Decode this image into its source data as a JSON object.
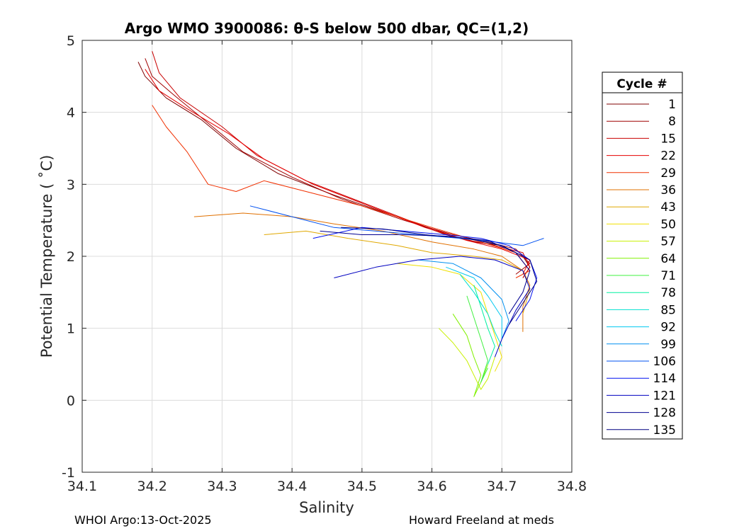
{
  "chart_data": {
    "type": "line",
    "title": "Argo WMO 3900086: θ-S below 500 dbar,  QC=(1,2)",
    "xlabel": "Salinity",
    "ylabel": "Potential Temperature ( ˚C)",
    "xlim": [
      34.1,
      34.8
    ],
    "ylim": [
      -1,
      5
    ],
    "xticks": [
      34.1,
      34.2,
      34.3,
      34.4,
      34.5,
      34.6,
      34.7,
      34.8
    ],
    "xtick_labels": [
      "34.1",
      "34.2",
      "34.3",
      "34.4",
      "34.5",
      "34.6",
      "34.7",
      "34.8"
    ],
    "yticks": [
      -1,
      0,
      1,
      2,
      3,
      4,
      5
    ],
    "ytick_labels": [
      "-1",
      "0",
      "1",
      "2",
      "3",
      "4",
      "5"
    ],
    "grid": true,
    "legend_title": "Cycle #",
    "legend_position": "right",
    "legend": [
      {
        "label": "1",
        "color": "#800000"
      },
      {
        "label": "8",
        "color": "#a00000"
      },
      {
        "label": "15",
        "color": "#c80000"
      },
      {
        "label": "22",
        "color": "#e60000"
      },
      {
        "label": "29",
        "color": "#f03000"
      },
      {
        "label": "36",
        "color": "#e07000"
      },
      {
        "label": "43",
        "color": "#e0a800"
      },
      {
        "label": "50",
        "color": "#f0e000"
      },
      {
        "label": "57",
        "color": "#c8f000"
      },
      {
        "label": "64",
        "color": "#80f000"
      },
      {
        "label": "71",
        "color": "#40f040"
      },
      {
        "label": "78",
        "color": "#00f0a0"
      },
      {
        "label": "85",
        "color": "#00e0d0"
      },
      {
        "label": "92",
        "color": "#00c8f0"
      },
      {
        "label": "99",
        "color": "#0090f0"
      },
      {
        "label": "106",
        "color": "#0050f0"
      },
      {
        "label": "114",
        "color": "#0010f0"
      },
      {
        "label": "121",
        "color": "#0000c0"
      },
      {
        "label": "128",
        "color": "#000090"
      },
      {
        "label": "135",
        "color": "#000080"
      }
    ],
    "series": [
      {
        "name": "1",
        "color": "#800000",
        "points": [
          [
            34.18,
            4.7
          ],
          [
            34.19,
            4.5
          ],
          [
            34.22,
            4.2
          ],
          [
            34.27,
            3.9
          ],
          [
            34.32,
            3.5
          ],
          [
            34.38,
            3.15
          ],
          [
            34.46,
            2.85
          ],
          [
            34.55,
            2.55
          ],
          [
            34.62,
            2.3
          ],
          [
            34.66,
            2.2
          ],
          [
            34.7,
            2.15
          ],
          [
            34.73,
            2.0
          ],
          [
            34.74,
            1.85
          ],
          [
            34.73,
            1.7
          ]
        ]
      },
      {
        "name": "8",
        "color": "#a00000",
        "points": [
          [
            34.19,
            4.75
          ],
          [
            34.2,
            4.5
          ],
          [
            34.23,
            4.25
          ],
          [
            34.28,
            3.85
          ],
          [
            34.33,
            3.45
          ],
          [
            34.4,
            3.1
          ],
          [
            34.47,
            2.8
          ],
          [
            34.56,
            2.5
          ],
          [
            34.63,
            2.3
          ],
          [
            34.68,
            2.2
          ],
          [
            34.72,
            2.1
          ],
          [
            34.74,
            1.9
          ],
          [
            34.72,
            1.75
          ]
        ]
      },
      {
        "name": "15",
        "color": "#c80000",
        "points": [
          [
            34.2,
            4.85
          ],
          [
            34.21,
            4.55
          ],
          [
            34.24,
            4.2
          ],
          [
            34.3,
            3.8
          ],
          [
            34.35,
            3.4
          ],
          [
            34.42,
            3.05
          ],
          [
            34.5,
            2.75
          ],
          [
            34.58,
            2.45
          ],
          [
            34.64,
            2.25
          ],
          [
            34.69,
            2.15
          ],
          [
            34.73,
            2.05
          ],
          [
            34.74,
            1.85
          ],
          [
            34.73,
            1.7
          ]
        ]
      },
      {
        "name": "22",
        "color": "#e60000",
        "points": [
          [
            34.19,
            4.6
          ],
          [
            34.21,
            4.3
          ],
          [
            34.25,
            4.05
          ],
          [
            34.31,
            3.7
          ],
          [
            34.36,
            3.35
          ],
          [
            34.43,
            3.0
          ],
          [
            34.51,
            2.7
          ],
          [
            34.59,
            2.4
          ],
          [
            34.65,
            2.22
          ],
          [
            34.7,
            2.1
          ],
          [
            34.74,
            1.95
          ],
          [
            34.73,
            1.75
          ]
        ]
      },
      {
        "name": "29",
        "color": "#f03000",
        "points": [
          [
            34.2,
            4.1
          ],
          [
            34.22,
            3.8
          ],
          [
            34.25,
            3.45
          ],
          [
            34.28,
            3.0
          ],
          [
            34.32,
            2.9
          ],
          [
            34.36,
            3.05
          ],
          [
            34.42,
            2.9
          ],
          [
            34.5,
            2.7
          ],
          [
            34.6,
            2.4
          ],
          [
            34.67,
            2.2
          ],
          [
            34.72,
            2.05
          ],
          [
            34.74,
            1.8
          ],
          [
            34.72,
            1.7
          ]
        ]
      },
      {
        "name": "36",
        "color": "#e07000",
        "points": [
          [
            34.26,
            2.55
          ],
          [
            34.33,
            2.6
          ],
          [
            34.4,
            2.55
          ],
          [
            34.46,
            2.45
          ],
          [
            34.53,
            2.35
          ],
          [
            34.6,
            2.2
          ],
          [
            34.66,
            2.1
          ],
          [
            34.7,
            2.0
          ],
          [
            34.73,
            1.8
          ],
          [
            34.74,
            1.6
          ],
          [
            34.73,
            1.3
          ],
          [
            34.73,
            0.95
          ]
        ]
      },
      {
        "name": "43",
        "color": "#e0a800",
        "points": [
          [
            34.36,
            2.3
          ],
          [
            34.42,
            2.35
          ],
          [
            34.48,
            2.25
          ],
          [
            34.55,
            2.15
          ],
          [
            34.6,
            2.05
          ],
          [
            34.66,
            2.0
          ],
          [
            34.7,
            1.95
          ],
          [
            34.73,
            1.8
          ],
          [
            34.74,
            1.55
          ],
          [
            34.73,
            1.2
          ]
        ]
      },
      {
        "name": "50",
        "color": "#f0e000",
        "points": [
          [
            34.55,
            1.9
          ],
          [
            34.6,
            1.85
          ],
          [
            34.64,
            1.75
          ],
          [
            34.67,
            1.5
          ],
          [
            34.68,
            1.2
          ],
          [
            34.69,
            0.9
          ],
          [
            34.7,
            0.6
          ],
          [
            34.69,
            0.4
          ]
        ]
      },
      {
        "name": "57",
        "color": "#c8f000",
        "points": [
          [
            34.61,
            1.0
          ],
          [
            34.63,
            0.8
          ],
          [
            34.65,
            0.55
          ],
          [
            34.66,
            0.35
          ],
          [
            34.67,
            0.15
          ],
          [
            34.68,
            0.3
          ],
          [
            34.69,
            0.6
          ]
        ]
      },
      {
        "name": "64",
        "color": "#80f000",
        "points": [
          [
            34.63,
            1.2
          ],
          [
            34.65,
            0.9
          ],
          [
            34.66,
            0.6
          ],
          [
            34.67,
            0.35
          ],
          [
            34.66,
            0.05
          ],
          [
            34.67,
            0.25
          ],
          [
            34.68,
            0.5
          ]
        ]
      },
      {
        "name": "71",
        "color": "#40f040",
        "points": [
          [
            34.65,
            1.45
          ],
          [
            34.66,
            1.15
          ],
          [
            34.67,
            0.85
          ],
          [
            34.68,
            0.55
          ],
          [
            34.67,
            0.25
          ],
          [
            34.68,
            0.45
          ]
        ]
      },
      {
        "name": "78",
        "color": "#00f0a0",
        "points": [
          [
            34.66,
            1.6
          ],
          [
            34.67,
            1.3
          ],
          [
            34.68,
            1.0
          ],
          [
            34.69,
            0.75
          ],
          [
            34.68,
            0.5
          ]
        ]
      },
      {
        "name": "85",
        "color": "#00e0d0",
        "points": [
          [
            34.64,
            1.75
          ],
          [
            34.66,
            1.5
          ],
          [
            34.68,
            1.2
          ],
          [
            34.69,
            0.95
          ],
          [
            34.7,
            0.75
          ]
        ]
      },
      {
        "name": "92",
        "color": "#00c8f0",
        "points": [
          [
            34.62,
            1.85
          ],
          [
            34.66,
            1.7
          ],
          [
            34.68,
            1.45
          ],
          [
            34.7,
            1.15
          ],
          [
            34.7,
            0.85
          ]
        ]
      },
      {
        "name": "99",
        "color": "#0090f0",
        "points": [
          [
            34.58,
            1.95
          ],
          [
            34.63,
            1.9
          ],
          [
            34.67,
            1.7
          ],
          [
            34.7,
            1.4
          ],
          [
            34.71,
            1.1
          ],
          [
            34.7,
            0.85
          ]
        ]
      },
      {
        "name": "106",
        "color": "#0050f0",
        "points": [
          [
            34.34,
            2.7
          ],
          [
            34.4,
            2.55
          ],
          [
            34.46,
            2.4
          ],
          [
            34.52,
            2.35
          ],
          [
            34.58,
            2.3
          ],
          [
            34.64,
            2.25
          ],
          [
            34.69,
            2.2
          ],
          [
            34.73,
            2.15
          ],
          [
            34.76,
            2.25
          ]
        ]
      },
      {
        "name": "114",
        "color": "#0010f0",
        "points": [
          [
            34.43,
            2.25
          ],
          [
            34.5,
            2.4
          ],
          [
            34.56,
            2.35
          ],
          [
            34.62,
            2.3
          ],
          [
            34.67,
            2.25
          ],
          [
            34.71,
            2.15
          ],
          [
            34.74,
            1.95
          ],
          [
            34.75,
            1.7
          ],
          [
            34.74,
            1.4
          ],
          [
            34.72,
            1.1
          ]
        ]
      },
      {
        "name": "121",
        "color": "#0000c0",
        "points": [
          [
            34.46,
            1.7
          ],
          [
            34.52,
            1.85
          ],
          [
            34.58,
            1.95
          ],
          [
            34.64,
            2.0
          ],
          [
            34.69,
            1.95
          ],
          [
            34.73,
            1.8
          ],
          [
            34.74,
            1.55
          ],
          [
            34.72,
            1.25
          ],
          [
            34.7,
            0.85
          ],
          [
            34.69,
            0.6
          ]
        ]
      },
      {
        "name": "128",
        "color": "#000090",
        "points": [
          [
            34.44,
            2.35
          ],
          [
            34.5,
            2.3
          ],
          [
            34.56,
            2.3
          ],
          [
            34.62,
            2.28
          ],
          [
            34.68,
            2.22
          ],
          [
            34.72,
            2.05
          ],
          [
            34.74,
            1.8
          ],
          [
            34.73,
            1.5
          ],
          [
            34.71,
            1.2
          ]
        ]
      },
      {
        "name": "135",
        "color": "#000080",
        "points": [
          [
            34.47,
            2.4
          ],
          [
            34.53,
            2.38
          ],
          [
            34.59,
            2.3
          ],
          [
            34.65,
            2.25
          ],
          [
            34.7,
            2.15
          ],
          [
            34.74,
            1.95
          ],
          [
            34.75,
            1.65
          ],
          [
            34.73,
            1.35
          ],
          [
            34.71,
            1.05
          ]
        ]
      }
    ]
  },
  "footer": {
    "left": "WHOI Argo:13-Oct-2025",
    "right": "Howard Freeland at meds"
  }
}
